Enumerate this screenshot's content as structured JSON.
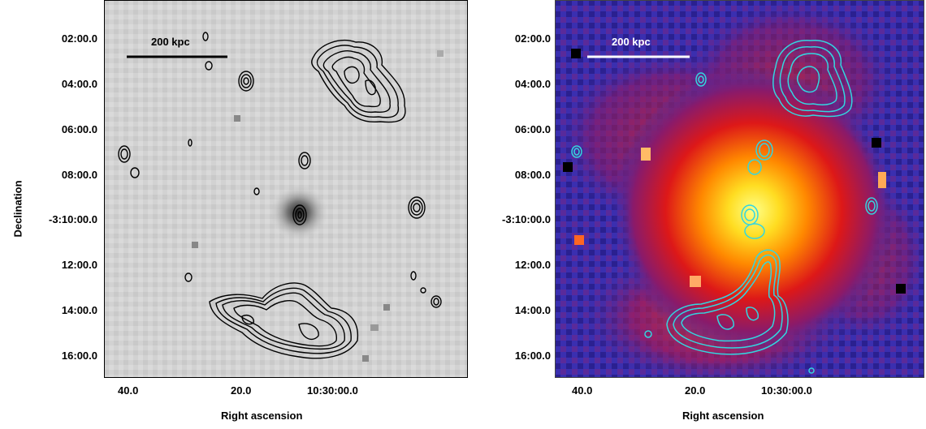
{
  "panels": [
    {
      "id": "left",
      "style": "grayscale",
      "scale_bar_label": "200 kpc",
      "contour_color": "#000000"
    },
    {
      "id": "right",
      "style": "false-color",
      "scale_bar_label": "200 kpc",
      "contour_color": "#33d6e0"
    }
  ],
  "axes": {
    "xlabel": "Right ascension",
    "ylabel": "Declination",
    "x_ticks": [
      "40.0",
      "20.0",
      "10:30:00.0"
    ],
    "y_ticks": [
      "02:00.0",
      "04:00.0",
      "06:00.0",
      "08:00.0",
      "-3:10:00.0",
      "12:00.0",
      "14:00.0",
      "16:00.0"
    ]
  },
  "colors": {
    "gray_bg": "#cfcfcf",
    "hot_core": "#ffff66",
    "cold_bg": "#3a2fb0"
  }
}
